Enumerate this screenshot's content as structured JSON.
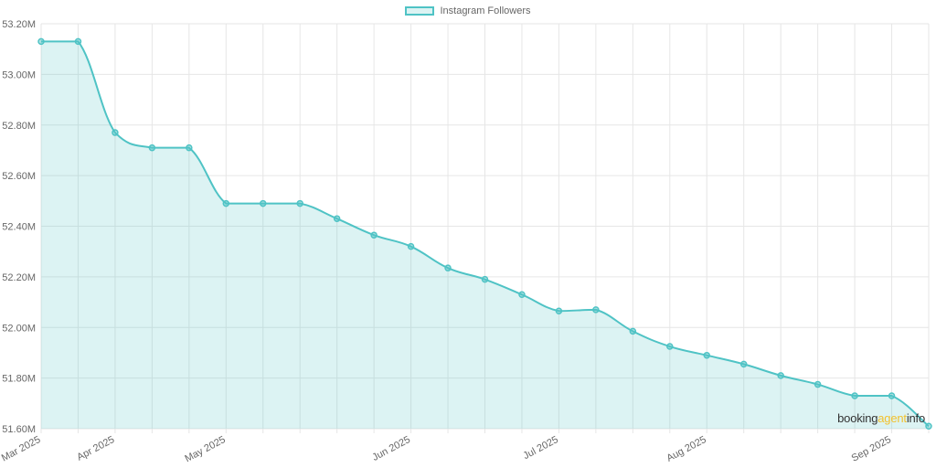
{
  "legend": {
    "label": "Instagram Followers"
  },
  "watermark": {
    "part1": "booking",
    "part2": "agent",
    "part3": "info"
  },
  "colors": {
    "line": "#4fc3c5",
    "fill": "rgba(79,195,197,0.2)",
    "grid": "#e6e6e6",
    "watermark_accent": "#f2c12e"
  },
  "chart_data": {
    "type": "area",
    "title": "",
    "xlabel": "",
    "ylabel": "",
    "ylim": [
      51.6,
      53.2
    ],
    "y_ticks": [
      "51.60M",
      "51.80M",
      "52.00M",
      "52.20M",
      "52.40M",
      "52.60M",
      "52.80M",
      "53.00M",
      "53.20M"
    ],
    "x_tick_labels": [
      "Mar 2025",
      "Apr 2025",
      "May 2025",
      "Jun 2025",
      "Jul 2025",
      "Aug 2025",
      "Sep 2025"
    ],
    "x_tick_index": [
      0,
      2,
      5,
      10,
      14,
      18,
      23
    ],
    "grid": true,
    "legend_position": "top-center",
    "series": [
      {
        "name": "Instagram Followers",
        "unit": "M",
        "values": [
          53.13,
          53.13,
          52.77,
          52.71,
          52.71,
          52.49,
          52.49,
          52.49,
          52.43,
          52.365,
          52.32,
          52.235,
          52.19,
          52.13,
          52.065,
          52.07,
          51.985,
          51.925,
          51.89,
          51.855,
          51.81,
          51.775,
          51.73,
          51.73,
          51.61
        ]
      }
    ]
  }
}
